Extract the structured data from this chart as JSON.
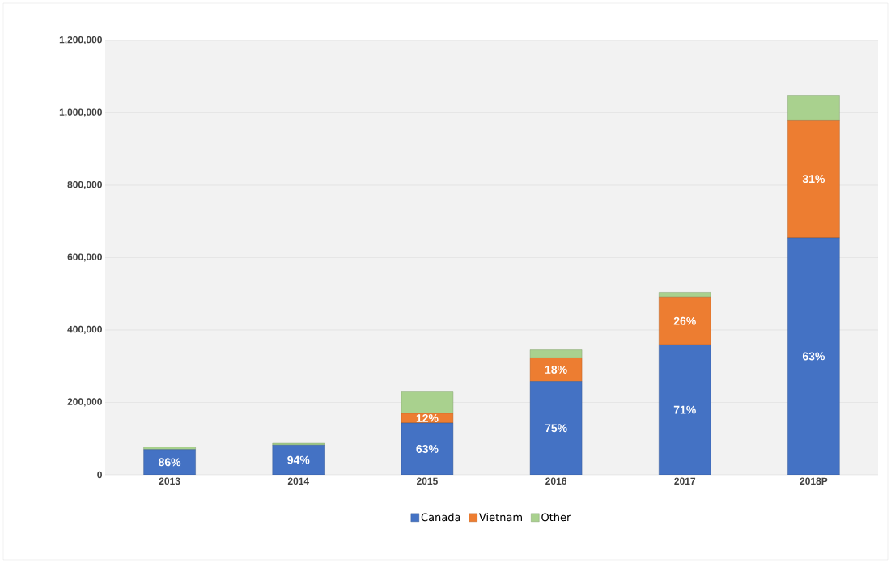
{
  "chart_data": {
    "type": "bar",
    "stacked": true,
    "categories": [
      "2013",
      "2014",
      "2015",
      "2016",
      "2017",
      "2018P"
    ],
    "series": [
      {
        "name": "Canada",
        "color": "#4472c4",
        "values": [
          70000,
          82000,
          143000,
          258000,
          359000,
          655000
        ]
      },
      {
        "name": "Vietnam",
        "color": "#ed7d31",
        "values": [
          0,
          0,
          27000,
          65000,
          132000,
          325000
        ]
      },
      {
        "name": "Other",
        "color": "#a9d18e",
        "values": [
          7000,
          5000,
          61000,
          22000,
          13000,
          67000
        ]
      }
    ],
    "annotations": [
      "86%",
      "94%",
      "63%",
      "75%",
      "71%",
      "63%",
      "12%",
      "18%",
      "26%",
      "31%"
    ],
    "ylim": [
      0,
      1200000
    ],
    "yticks": [
      {
        "value": 0,
        "label": "0"
      },
      {
        "value": 200000,
        "label": "200,000"
      },
      {
        "value": 400000,
        "label": "400,000"
      },
      {
        "value": 600000,
        "label": "600,000"
      },
      {
        "value": 800000,
        "label": "800,000"
      },
      {
        "value": 1000000,
        "label": "1,000,000"
      },
      {
        "value": 1200000,
        "label": "1,200,000"
      }
    ],
    "grid": "y",
    "legend": "bottom"
  }
}
